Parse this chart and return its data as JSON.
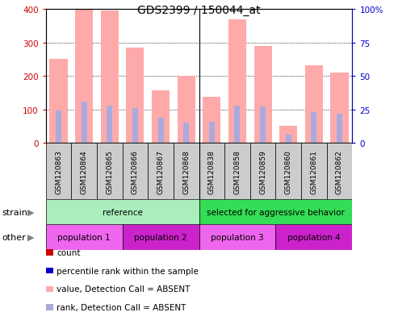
{
  "title": "GDS2399 / 150044_at",
  "samples": [
    "GSM120863",
    "GSM120864",
    "GSM120865",
    "GSM120866",
    "GSM120867",
    "GSM120868",
    "GSM120838",
    "GSM120858",
    "GSM120859",
    "GSM120860",
    "GSM120861",
    "GSM120862"
  ],
  "absent_value_bars": [
    252,
    400,
    397,
    285,
    157,
    201,
    138,
    370,
    289,
    50,
    232,
    210
  ],
  "absent_rank_bars": [
    24,
    31,
    28,
    26,
    19,
    15,
    16,
    28,
    27,
    6,
    23,
    22
  ],
  "ylim_left": [
    0,
    400
  ],
  "ylim_right": [
    0,
    100
  ],
  "yticks_left": [
    0,
    100,
    200,
    300,
    400
  ],
  "yticks_right": [
    0,
    25,
    50,
    75,
    100
  ],
  "ytick_labels_right": [
    "0",
    "25",
    "50",
    "75",
    "100%"
  ],
  "strain_groups": [
    {
      "label": "reference",
      "start": 0,
      "end": 6,
      "color": "#aaeebb"
    },
    {
      "label": "selected for aggressive behavior",
      "start": 6,
      "end": 12,
      "color": "#33dd55"
    }
  ],
  "other_groups": [
    {
      "label": "population 1",
      "start": 0,
      "end": 3,
      "color": "#ee66ee"
    },
    {
      "label": "population 2",
      "start": 3,
      "end": 6,
      "color": "#cc22cc"
    },
    {
      "label": "population 3",
      "start": 6,
      "end": 9,
      "color": "#ee66ee"
    },
    {
      "label": "population 4",
      "start": 9,
      "end": 12,
      "color": "#cc22cc"
    }
  ],
  "legend_items": [
    {
      "label": "count",
      "color": "#cc0000"
    },
    {
      "label": "percentile rank within the sample",
      "color": "#0000cc"
    },
    {
      "label": "value, Detection Call = ABSENT",
      "color": "#ffaaaa"
    },
    {
      "label": "rank, Detection Call = ABSENT",
      "color": "#aaaadd"
    }
  ],
  "absent_bar_color": "#ffaaaa",
  "absent_rank_color": "#aaaadd",
  "left_axis_color": "#cc0000",
  "right_axis_color": "#0000cc",
  "sample_box_color": "#cccccc",
  "group_divider": 6
}
